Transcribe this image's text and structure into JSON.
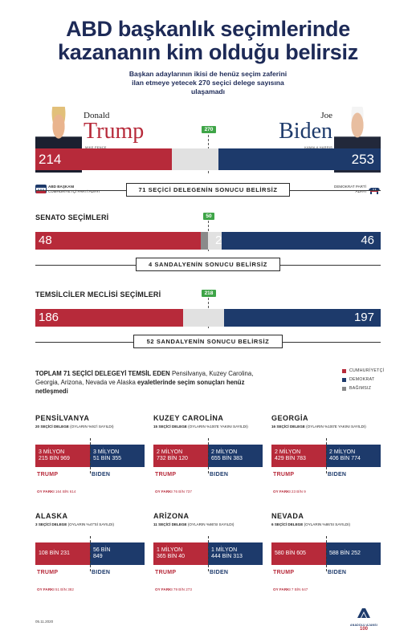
{
  "title_line1": "ABD başkanlık seçimlerinde",
  "title_line2": "kazananın kim olduğu belirsiz",
  "subtitle_line1": "Başkan adaylarının ikisi de henüz seçim zaferini",
  "subtitle_line2": "ilan etmeye yetecek 270 seçici delege sayısına",
  "subtitle_line3": "ulaşamadı",
  "president": {
    "threshold": "270",
    "trump": {
      "first": "Donald",
      "last": "Trump",
      "vp": "MIKE PENCE",
      "value": "214",
      "party_line1": "ABD BAŞKANI",
      "party_line2": "CUMHURİYETÇİ PARTİ ADAYI"
    },
    "biden": {
      "first": "Joe",
      "last": "Biden",
      "vp": "KAMALA HARRIS",
      "value": "253",
      "party_line1": "DEMOKRAT PARTİ",
      "party_line2": "ADAYI"
    },
    "shares": {
      "trump": 0.396,
      "biden": 0.469
    },
    "uncertain": "71 SEÇİCİ DELEGENİN SONUCU BELİRSİZ"
  },
  "senate": {
    "label": "SENATO SEÇİMLERİ",
    "threshold": "50",
    "rep": "48",
    "ind": "2",
    "dem": "46",
    "shares": {
      "rep": 0.48,
      "ind": 0.02,
      "dem": 0.46
    },
    "uncertain": "4 SANDALYENİN SONUCU BELİRSİZ"
  },
  "house": {
    "label": "TEMSİLCİLER MECLİSİ SEÇİMLERİ",
    "threshold": "218",
    "rep": "186",
    "dem": "197",
    "shares": {
      "rep": 0.4276,
      "dem": 0.4529
    },
    "uncertain": "52 SANDALYENİN SONUCU BELİRSİZ"
  },
  "states_intro": {
    "part1": "TOPLAM 71 SEÇİCİ DELEGEYİ TEMSİL EDEN",
    "part2": " Pensilvanya, Kuzey Carolina, Georgia, Arizona, Nevada ve Alaska ",
    "part3": "eyaletlerinde seçim sonuçları henüz netleşmedi"
  },
  "legend": [
    {
      "label": "CUMHURİYETÇİ",
      "color": "#b72a3a"
    },
    {
      "label": "DEMOKRAT",
      "color": "#1d3a6b"
    },
    {
      "label": "BAĞIMSIZ",
      "color": "#888888"
    }
  ],
  "states": [
    {
      "name": "PENSİLVANYA",
      "delegates_bold": "20 SEÇİCİ DELEGE",
      "delegates_rest": " (OYLARIN %91'İ SAYILDI)",
      "trump_l1": "3 MİLYON",
      "trump_l2": "215 BİN 969",
      "biden_l1": "3 MİLYON",
      "biden_l2": "51 BİN 355",
      "trump": "TRUMP",
      "biden": "BIDEN",
      "oy_bold": "OY FARKI",
      "oy_val": " 164 BİN 614"
    },
    {
      "name": "KUZEY CAROLİNA",
      "delegates_bold": "15 SEÇİCİ DELEGE",
      "delegates_rest": " (OYLARIN %100'E YAKINI SAYILDI)",
      "trump_l1": "2 MİLYON",
      "trump_l2": "732 BİN 120",
      "biden_l1": "2 MİLYON",
      "biden_l2": "655 BİN 383",
      "trump": "TRUMP",
      "biden": "BIDEN",
      "oy_bold": "OY FARKI",
      "oy_val": " 76 BİN 737"
    },
    {
      "name": "GEORGİA",
      "delegates_bold": "16 SEÇİCİ DELEGE",
      "delegates_rest": " (OYLARIN %100'E YAKINI SAYILDI)",
      "trump_l1": "2 MİLYON",
      "trump_l2": "429 BİN 783",
      "biden_l1": "2 MİLYON",
      "biden_l2": "406 BİN 774",
      "trump": "TRUMP",
      "biden": "BIDEN",
      "oy_bold": "OY FARKI",
      "oy_val": " 23 BİN 9"
    },
    {
      "name": "ALASKA",
      "delegates_bold": "3 SEÇİCİ DELEGE",
      "delegates_rest": " (OYLARIN %47'Sİ SAYILDI)",
      "trump_l1": "108 BİN 231",
      "trump_l2": "",
      "biden_l1": "56 BİN",
      "biden_l2": "849",
      "trump": "TRUMP",
      "biden": "BIDEN",
      "oy_bold": "OY FARKI",
      "oy_val": " 51 BİN 382"
    },
    {
      "name": "ARİZONA",
      "delegates_bold": "11 SEÇİCİ DELEGE",
      "delegates_rest": " (OYLARIN %86'SI SAYILDI)",
      "trump_l1": "1 MİLYON",
      "trump_l2": "365 BİN 40",
      "biden_l1": "1 MİLYON",
      "biden_l2": "444 BİN 313",
      "trump": "TRUMP",
      "biden": "BIDEN",
      "oy_bold": "OY FARKI",
      "oy_val": " 79 BİN 273"
    },
    {
      "name": "NEVADA",
      "delegates_bold": "6 SEÇİCİ DELEGE",
      "delegates_rest": " (OYLARIN %86'SI SAYILDI)",
      "trump_l1": "580 BİN 605",
      "trump_l2": "",
      "biden_l1": "588 BİN 252",
      "biden_l2": "",
      "trump": "TRUMP",
      "biden": "BIDEN",
      "oy_bold": "OY FARKI",
      "oy_val": " 7 BİN 647"
    }
  ],
  "footer_date": "05.11.2020",
  "logo_text": "ANADOLU AJANSI",
  "logo_badge": "100"
}
